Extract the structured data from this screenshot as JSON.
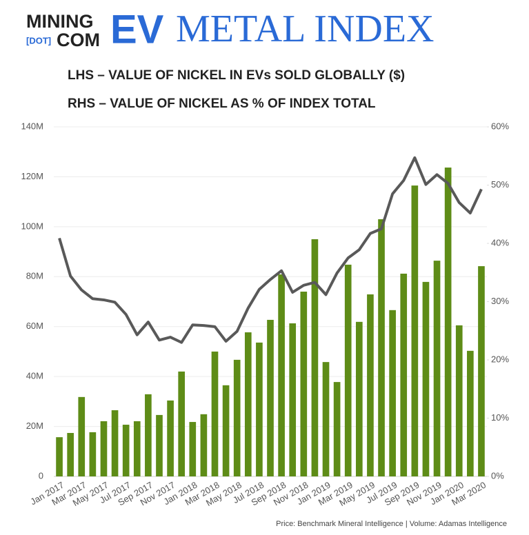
{
  "chart_data": {
    "type": "bar",
    "logo": {
      "top": "MINING",
      "dot": "[DOT]",
      "bottom": "COM"
    },
    "title_bold": "EV",
    "title": "METAL INDEX",
    "subtitles": [
      "LHS – VALUE OF NICKEL IN EVs SOLD GLOBALLY ($)",
      "RHS – VALUE OF NICKEL AS % OF INDEX TOTAL"
    ],
    "source": "Price: Benchmark Mineral Intelligence | Volume: Adamas Intelligence",
    "categories": [
      "Jan 2017",
      null,
      "Mar 2017",
      null,
      "May 2017",
      null,
      "Jul 2017",
      null,
      "Sep 2017",
      null,
      "Nov 2017",
      null,
      "Jan 2018",
      null,
      "Mar 2018",
      null,
      "May 2018",
      null,
      "Jul 2018",
      null,
      "Sep 2018",
      null,
      "Nov 2018",
      null,
      "Jan 2019",
      null,
      "Mar 2019",
      null,
      "May 2019",
      null,
      "Jul 2019",
      null,
      "Sep 2019",
      null,
      "Nov 2019",
      null,
      "Jan 2020",
      null,
      "Mar 2020"
    ],
    "series": [
      {
        "type": "bar",
        "color": "#5e8c17",
        "values": [
          15.7,
          17.4,
          31.8,
          17.7,
          22.1,
          26.5,
          20.7,
          22.1,
          32.9,
          24.6,
          30.4,
          42.0,
          21.8,
          24.9,
          50.0,
          36.5,
          46.7,
          57.7,
          53.6,
          62.7,
          80.9,
          61.3,
          74.0,
          95.0,
          45.8,
          37.8,
          84.8,
          61.9,
          72.9,
          103.0,
          66.6,
          81.2,
          116.5,
          77.9,
          86.4,
          123.7,
          60.5,
          50.3,
          84.2
        ]
      },
      {
        "type": "line",
        "axis": "y2",
        "color": "#595959",
        "values": [
          40.9,
          34.4,
          32.0,
          30.5,
          30.3,
          29.9,
          27.8,
          24.3,
          26.5,
          23.4,
          23.9,
          23.0,
          26.0,
          25.9,
          25.7,
          23.2,
          24.9,
          28.9,
          32.1,
          33.8,
          35.3,
          31.6,
          32.8,
          33.3,
          31.2,
          34.9,
          37.5,
          38.9,
          41.7,
          42.5,
          48.5,
          50.8,
          54.7,
          50.1,
          51.8,
          50.3,
          47.0,
          45.2,
          49.3
        ]
      }
    ],
    "ylim": [
      0,
      140
    ],
    "yticks": [
      0,
      {
        "value": 20,
        "label": "20M"
      },
      {
        "value": 40,
        "label": "40M"
      },
      {
        "value": 60,
        "label": "60M"
      },
      {
        "value": 80,
        "label": "80M"
      },
      {
        "value": 100,
        "label": "100M"
      },
      {
        "value": 120,
        "label": "120M"
      },
      {
        "value": 140,
        "label": "140M"
      }
    ],
    "y2lim": [
      0,
      60
    ],
    "y2ticks": [
      {
        "value": 0,
        "label": "0%"
      },
      {
        "value": 10,
        "label": "10%"
      },
      {
        "value": 20,
        "label": "20%"
      },
      {
        "value": 30,
        "label": "30%"
      },
      {
        "value": 40,
        "label": "40%"
      },
      {
        "value": 50,
        "label": "50%"
      },
      {
        "value": 60,
        "label": "60%"
      }
    ],
    "grid": true
  }
}
